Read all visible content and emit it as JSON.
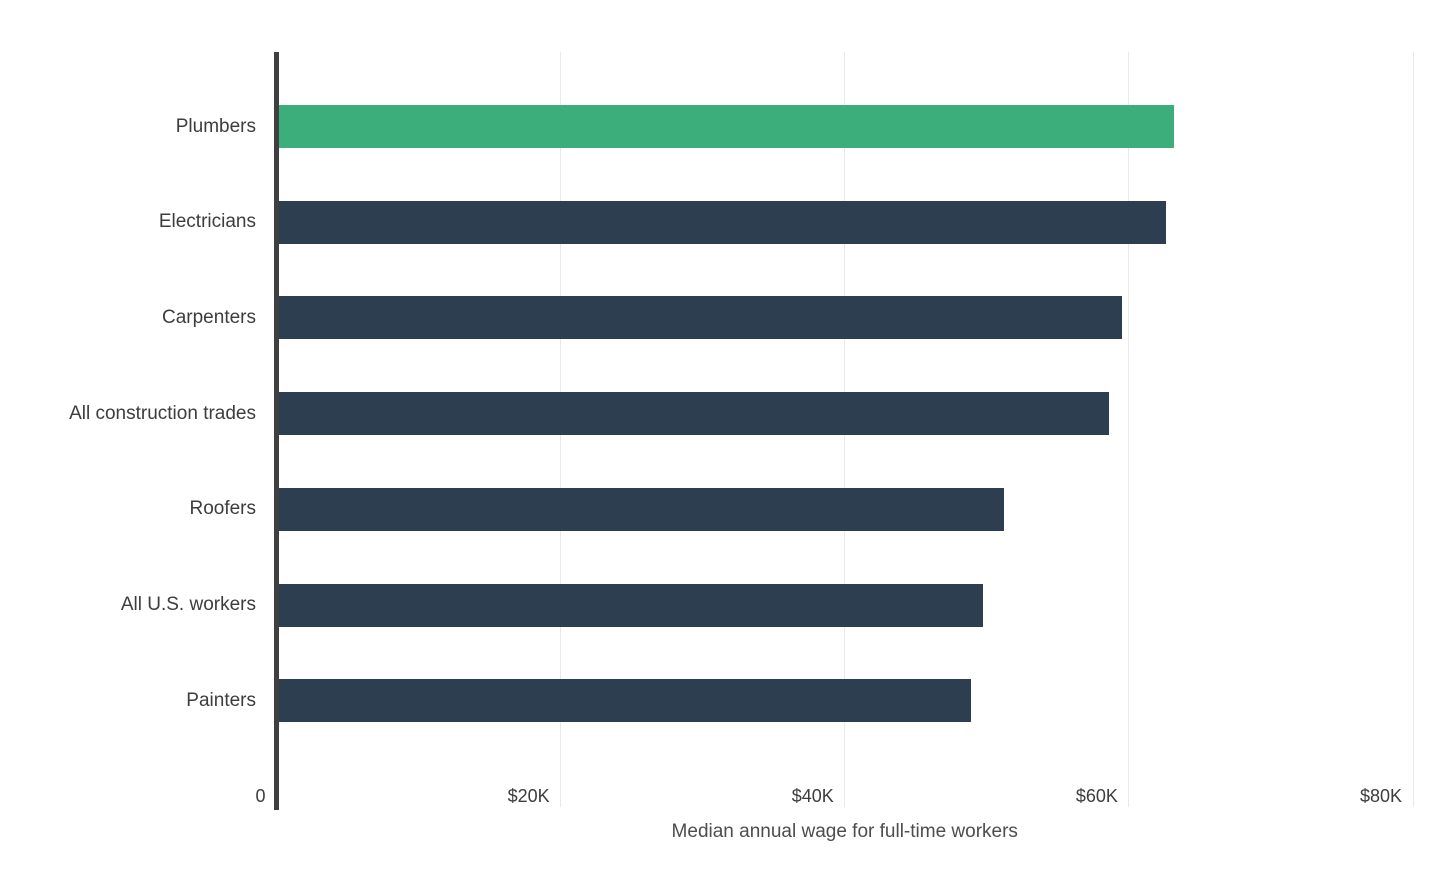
{
  "chart_data": {
    "type": "bar",
    "orientation": "horizontal",
    "title": "",
    "xlabel": "Median annual wage for full-time workers",
    "ylabel": "",
    "categories": [
      "Plumbers",
      "Electricians",
      "Carpenters",
      "All construction trades",
      "Roofers",
      "All U.S. workers",
      "Painters"
    ],
    "values": [
      63200,
      62600,
      59500,
      58600,
      51200,
      49700,
      48900
    ],
    "xlim": [
      0,
      80000
    ],
    "x_ticks": [
      {
        "value": 0,
        "label": "0"
      },
      {
        "value": 20000,
        "label": "$20K"
      },
      {
        "value": 40000,
        "label": "$40K"
      },
      {
        "value": 60000,
        "label": "$60K"
      },
      {
        "value": 80000,
        "label": "$80K"
      }
    ],
    "grid": "vertical-only",
    "legend": "none",
    "highlight_index": 0,
    "colors": {
      "highlight_bar": "#3cae7c",
      "default_bar": "#2d3e50",
      "axis_line": "#3f3f3f",
      "gridline": "#e9e9e9",
      "tick_label": "#3d3d3d",
      "category_label": "#3d3d3d",
      "axis_title": "#4d4d4d",
      "background": "#ffffff"
    }
  }
}
